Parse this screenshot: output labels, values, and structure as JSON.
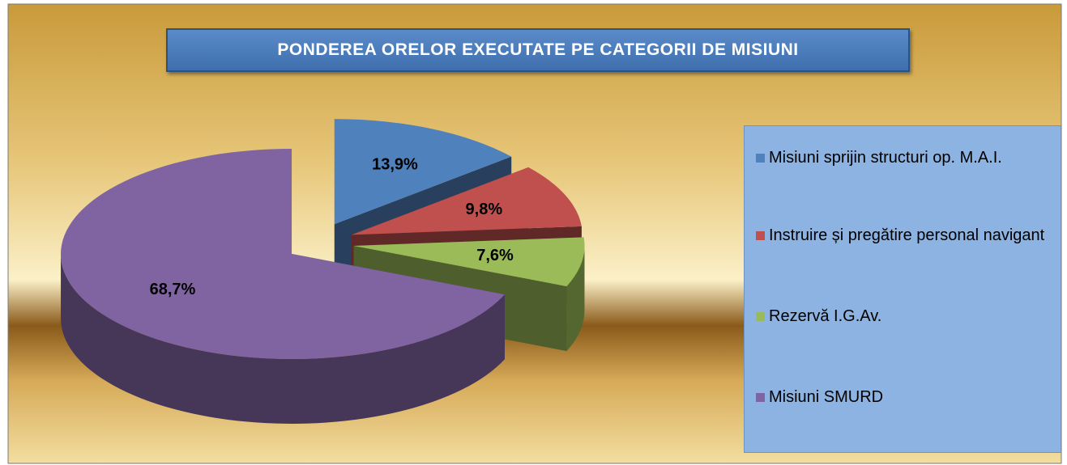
{
  "chart_data": {
    "type": "pie",
    "title": "PONDEREA ORELOR EXECUTATE PE CATEGORII DE MISIUNI",
    "categories": [
      "Misiuni sprijin structuri op. M.A.I.",
      "Instruire și pregătire personal navigant",
      "Rezervă I.G.Av.",
      "Misiuni SMURD"
    ],
    "values": [
      13.9,
      9.8,
      7.6,
      68.7
    ],
    "value_labels": [
      "13,9%",
      "9,8%",
      "7,6%",
      "68,7%"
    ],
    "colors": [
      "#4f81bd",
      "#c0504d",
      "#9bbb59",
      "#8064a2"
    ]
  }
}
